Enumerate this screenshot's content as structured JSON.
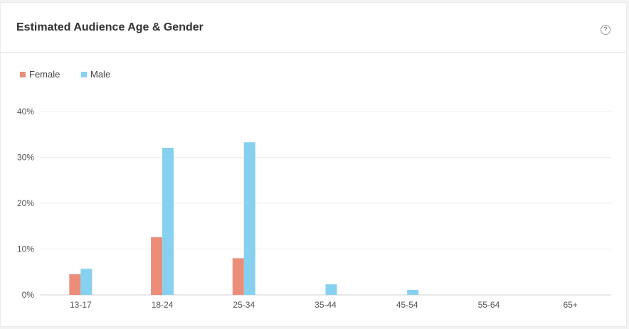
{
  "card": {
    "title": "Estimated Audience Age & Gender",
    "help_icon": "question-circle-icon"
  },
  "chart_data": {
    "type": "bar",
    "categories": [
      "13-17",
      "18-24",
      "25-34",
      "35-44",
      "45-54",
      "55-64",
      "65+"
    ],
    "series": [
      {
        "name": "Female",
        "color": "#ea8e7a",
        "values": [
          4.5,
          12.6,
          8.0,
          0,
          0,
          0,
          0
        ]
      },
      {
        "name": "Male",
        "color": "#87d0ef",
        "values": [
          5.7,
          32.1,
          33.3,
          2.3,
          1.1,
          0,
          0
        ]
      }
    ],
    "y_ticks": [
      "0%",
      "10%",
      "20%",
      "30%",
      "40%"
    ],
    "ylim": [
      0,
      40
    ],
    "grid": true,
    "legend_position": "top-left"
  }
}
